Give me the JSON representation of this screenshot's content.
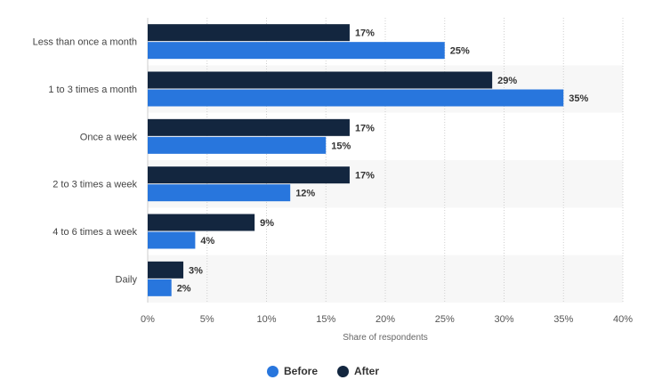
{
  "chart_data": {
    "type": "bar",
    "orientation": "horizontal",
    "categories": [
      "Less than once a month",
      "1 to 3 times a month",
      "Once a week",
      "2 to 3 times a week",
      "4 to 6 times a week",
      "Daily"
    ],
    "series": [
      {
        "name": "After",
        "values": [
          17,
          29,
          17,
          17,
          9,
          3
        ],
        "color": "#13263f"
      },
      {
        "name": "Before",
        "values": [
          25,
          35,
          15,
          12,
          4,
          2
        ],
        "color": "#2876dd"
      }
    ],
    "data_labels": {
      "After": [
        "17%",
        "29%",
        "17%",
        "17%",
        "9%",
        "3%"
      ],
      "Before": [
        "25%",
        "35%",
        "15%",
        "12%",
        "4%",
        "2%"
      ]
    },
    "xlabel": "Share of respondents",
    "ylabel": "",
    "xlim": [
      0,
      40
    ],
    "xticks": [
      0,
      5,
      10,
      15,
      20,
      25,
      30,
      35,
      40
    ],
    "xtick_labels": [
      "0%",
      "5%",
      "10%",
      "15%",
      "20%",
      "25%",
      "30%",
      "35%",
      "40%"
    ],
    "grid": "vertical dotted",
    "legend": {
      "position": "bottom-center",
      "items": [
        {
          "name": "Before",
          "color": "#2876dd"
        },
        {
          "name": "After",
          "color": "#13263f"
        }
      ]
    }
  }
}
